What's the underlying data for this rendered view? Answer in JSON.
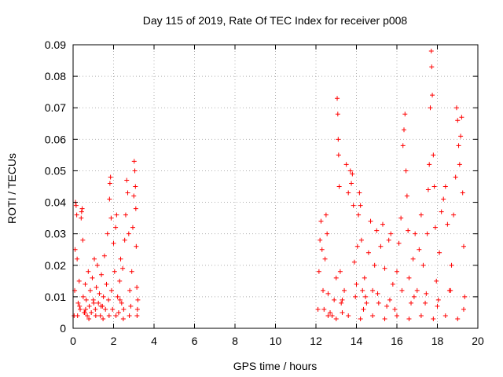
{
  "chart_data": {
    "type": "scatter",
    "title": "Day 115 of 2019, Rate Of TEC Index for receiver p008",
    "xlabel": "GPS time / hours",
    "ylabel": "ROTI / TECUs",
    "xlim": [
      0,
      20
    ],
    "ylim": [
      0,
      0.09
    ],
    "x_ticks": [
      "0",
      "2",
      "4",
      "6",
      "8",
      "10",
      "12",
      "14",
      "16",
      "18",
      "20"
    ],
    "y_ticks": [
      "0",
      "0.01",
      "0.02",
      "0.03",
      "0.04",
      "0.05",
      "0.06",
      "0.07",
      "0.08",
      "0.09"
    ],
    "x_tick_values": [
      0,
      2,
      4,
      6,
      8,
      10,
      12,
      14,
      16,
      18,
      20
    ],
    "y_tick_values": [
      0,
      0.01,
      0.02,
      0.03,
      0.04,
      0.05,
      0.06,
      0.07,
      0.08,
      0.09
    ],
    "grid": true,
    "marker": "plus",
    "marker_color": "#ff0000",
    "data_gap_hours": [
      3.3,
      12.1
    ],
    "series": [
      {
        "name": "p008",
        "points": [
          [
            0.05,
            0.004
          ],
          [
            0.08,
            0.012
          ],
          [
            0.1,
            0.025
          ],
          [
            0.12,
            0.04
          ],
          [
            0.15,
            0.039
          ],
          [
            0.18,
            0.036
          ],
          [
            0.2,
            0.022
          ],
          [
            0.25,
            0.008
          ],
          [
            0.3,
            0.015
          ],
          [
            0.35,
            0.006
          ],
          [
            0.4,
            0.035
          ],
          [
            0.42,
            0.037
          ],
          [
            0.45,
            0.038
          ],
          [
            0.48,
            0.028
          ],
          [
            0.5,
            0.01
          ],
          [
            0.55,
            0.005
          ],
          [
            0.6,
            0.014
          ],
          [
            0.65,
            0.009
          ],
          [
            0.7,
            0.004
          ],
          [
            0.75,
            0.018
          ],
          [
            0.8,
            0.007
          ],
          [
            0.85,
            0.012
          ],
          [
            0.9,
            0.005
          ],
          [
            0.95,
            0.016
          ],
          [
            1.0,
            0.009
          ],
          [
            1.05,
            0.022
          ],
          [
            1.1,
            0.006
          ],
          [
            1.15,
            0.013
          ],
          [
            1.2,
            0.02
          ],
          [
            1.25,
            0.008
          ],
          [
            1.3,
            0.011
          ],
          [
            1.35,
            0.004
          ],
          [
            1.4,
            0.017
          ],
          [
            1.45,
            0.007
          ],
          [
            1.5,
            0.01
          ],
          [
            1.55,
            0.023
          ],
          [
            1.6,
            0.006
          ],
          [
            1.65,
            0.014
          ],
          [
            1.7,
            0.03
          ],
          [
            1.75,
            0.009
          ],
          [
            1.8,
            0.041
          ],
          [
            1.82,
            0.046
          ],
          [
            1.85,
            0.048
          ],
          [
            1.88,
            0.035
          ],
          [
            1.9,
            0.012
          ],
          [
            1.95,
            0.006
          ],
          [
            2.0,
            0.027
          ],
          [
            2.05,
            0.018
          ],
          [
            2.1,
            0.032
          ],
          [
            2.15,
            0.036
          ],
          [
            2.2,
            0.01
          ],
          [
            2.25,
            0.005
          ],
          [
            2.3,
            0.015
          ],
          [
            2.35,
            0.022
          ],
          [
            2.4,
            0.008
          ],
          [
            2.45,
            0.019
          ],
          [
            2.5,
            0.006
          ],
          [
            2.55,
            0.028
          ],
          [
            2.6,
            0.036
          ],
          [
            2.65,
            0.047
          ],
          [
            2.7,
            0.043
          ],
          [
            2.75,
            0.03
          ],
          [
            2.8,
            0.012
          ],
          [
            2.85,
            0.007
          ],
          [
            2.9,
            0.018
          ],
          [
            2.95,
            0.032
          ],
          [
            3.0,
            0.042
          ],
          [
            3.02,
            0.053
          ],
          [
            3.05,
            0.05
          ],
          [
            3.08,
            0.045
          ],
          [
            3.1,
            0.038
          ],
          [
            3.12,
            0.026
          ],
          [
            3.15,
            0.013
          ],
          [
            3.18,
            0.006
          ],
          [
            3.2,
            0.009
          ],
          [
            0.22,
            0.004
          ],
          [
            0.58,
            0.005
          ],
          [
            0.78,
            0.003
          ],
          [
            1.12,
            0.004
          ],
          [
            1.48,
            0.003
          ],
          [
            1.78,
            0.004
          ],
          [
            2.12,
            0.004
          ],
          [
            2.48,
            0.003
          ],
          [
            2.78,
            0.004
          ],
          [
            3.16,
            0.004
          ],
          [
            0.32,
            0.007
          ],
          [
            0.62,
            0.006
          ],
          [
            1.02,
            0.008
          ],
          [
            1.38,
            0.007
          ],
          [
            2.32,
            0.009
          ],
          [
            12.1,
            0.006
          ],
          [
            12.15,
            0.018
          ],
          [
            12.2,
            0.028
          ],
          [
            12.25,
            0.034
          ],
          [
            12.3,
            0.025
          ],
          [
            12.35,
            0.012
          ],
          [
            12.4,
            0.006
          ],
          [
            12.45,
            0.022
          ],
          [
            12.5,
            0.036
          ],
          [
            12.55,
            0.03
          ],
          [
            12.6,
            0.011
          ],
          [
            12.7,
            0.005
          ],
          [
            12.8,
            0.004
          ],
          [
            12.9,
            0.009
          ],
          [
            13.0,
            0.016
          ],
          [
            13.05,
            0.073
          ],
          [
            13.08,
            0.068
          ],
          [
            13.1,
            0.06
          ],
          [
            13.12,
            0.055
          ],
          [
            13.15,
            0.045
          ],
          [
            13.2,
            0.018
          ],
          [
            13.25,
            0.008
          ],
          [
            13.3,
            0.005
          ],
          [
            13.4,
            0.012
          ],
          [
            13.5,
            0.052
          ],
          [
            13.6,
            0.043
          ],
          [
            13.7,
            0.05
          ],
          [
            13.75,
            0.046
          ],
          [
            13.8,
            0.049
          ],
          [
            13.85,
            0.039
          ],
          [
            13.9,
            0.021
          ],
          [
            13.95,
            0.01
          ],
          [
            14.0,
            0.014
          ],
          [
            14.05,
            0.026
          ],
          [
            14.1,
            0.036
          ],
          [
            14.15,
            0.043
          ],
          [
            14.2,
            0.039
          ],
          [
            14.25,
            0.028
          ],
          [
            14.3,
            0.012
          ],
          [
            14.35,
            0.006
          ],
          [
            14.4,
            0.016
          ],
          [
            14.5,
            0.008
          ],
          [
            14.6,
            0.024
          ],
          [
            14.7,
            0.034
          ],
          [
            14.8,
            0.012
          ],
          [
            14.9,
            0.02
          ],
          [
            15.0,
            0.031
          ],
          [
            15.1,
            0.008
          ],
          [
            15.2,
            0.026
          ],
          [
            15.3,
            0.033
          ],
          [
            15.4,
            0.019
          ],
          [
            15.5,
            0.007
          ],
          [
            15.6,
            0.028
          ],
          [
            15.7,
            0.03
          ],
          [
            15.8,
            0.014
          ],
          [
            15.9,
            0.006
          ],
          [
            16.0,
            0.018
          ],
          [
            16.1,
            0.027
          ],
          [
            16.2,
            0.035
          ],
          [
            16.3,
            0.058
          ],
          [
            16.35,
            0.063
          ],
          [
            16.4,
            0.068
          ],
          [
            16.45,
            0.05
          ],
          [
            16.5,
            0.042
          ],
          [
            16.55,
            0.031
          ],
          [
            16.6,
            0.016
          ],
          [
            16.7,
            0.008
          ],
          [
            16.8,
            0.022
          ],
          [
            16.9,
            0.03
          ],
          [
            17.0,
            0.012
          ],
          [
            17.1,
            0.025
          ],
          [
            17.2,
            0.036
          ],
          [
            17.3,
            0.02
          ],
          [
            17.4,
            0.008
          ],
          [
            17.5,
            0.03
          ],
          [
            17.55,
            0.044
          ],
          [
            17.6,
            0.052
          ],
          [
            17.65,
            0.07
          ],
          [
            17.7,
            0.088
          ],
          [
            17.72,
            0.083
          ],
          [
            17.75,
            0.074
          ],
          [
            17.8,
            0.055
          ],
          [
            17.85,
            0.045
          ],
          [
            17.9,
            0.032
          ],
          [
            17.95,
            0.015
          ],
          [
            18.0,
            0.007
          ],
          [
            18.1,
            0.024
          ],
          [
            18.2,
            0.037
          ],
          [
            18.3,
            0.041
          ],
          [
            18.4,
            0.045
          ],
          [
            18.5,
            0.033
          ],
          [
            18.6,
            0.012
          ],
          [
            18.7,
            0.02
          ],
          [
            18.8,
            0.036
          ],
          [
            18.9,
            0.048
          ],
          [
            18.95,
            0.07
          ],
          [
            19.0,
            0.066
          ],
          [
            19.05,
            0.058
          ],
          [
            19.1,
            0.052
          ],
          [
            19.15,
            0.061
          ],
          [
            19.2,
            0.067
          ],
          [
            19.25,
            0.043
          ],
          [
            19.3,
            0.026
          ],
          [
            19.35,
            0.01
          ],
          [
            12.6,
            0.004
          ],
          [
            13.0,
            0.003
          ],
          [
            13.6,
            0.004
          ],
          [
            14.2,
            0.003
          ],
          [
            14.8,
            0.004
          ],
          [
            15.4,
            0.003
          ],
          [
            16.0,
            0.004
          ],
          [
            16.6,
            0.003
          ],
          [
            17.2,
            0.004
          ],
          [
            17.8,
            0.003
          ],
          [
            18.4,
            0.004
          ],
          [
            19.0,
            0.003
          ],
          [
            13.3,
            0.009
          ],
          [
            14.45,
            0.01
          ],
          [
            15.05,
            0.011
          ],
          [
            15.65,
            0.009
          ],
          [
            16.25,
            0.012
          ],
          [
            16.85,
            0.01
          ],
          [
            17.45,
            0.011
          ],
          [
            18.05,
            0.009
          ],
          [
            18.65,
            0.012
          ],
          [
            19.3,
            0.006
          ]
        ]
      }
    ]
  }
}
